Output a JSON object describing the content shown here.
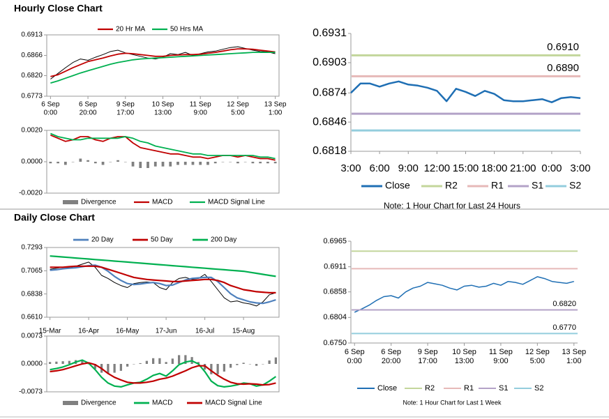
{
  "section_titles": [
    "Hourly Close Chart",
    "Daily Close Chart"
  ],
  "chart_data": [
    {
      "type": "line",
      "ylim": [
        0.6773,
        0.6913
      ],
      "yticks": [
        0.6773,
        {
          "value": 0.682,
          "label": "0.6820"
        },
        0.6866,
        0.6913
      ],
      "categories": [
        {
          "date": "6 Sep",
          "time": "0:00"
        },
        null,
        null,
        null,
        null,
        {
          "date": "6 Sep",
          "time": "20:00"
        },
        null,
        null,
        null,
        null,
        {
          "date": "9 Sep",
          "time": "17:00"
        },
        null,
        null,
        null,
        null,
        {
          "date": "10 Sep",
          "time": "13:00"
        },
        null,
        null,
        null,
        null,
        {
          "date": "11 Sep",
          "time": "9:00"
        },
        null,
        null,
        null,
        null,
        {
          "date": "12 Sep",
          "time": "5:00"
        },
        null,
        null,
        null,
        null,
        {
          "date": "13 Sep",
          "time": "1:00"
        }
      ],
      "series": [
        {
          "color": "#000000",
          "values": [
            0.6812,
            0.6825,
            0.6838,
            0.685,
            0.6858,
            0.6855,
            0.6862,
            0.6868,
            0.6875,
            0.6878,
            0.6872,
            0.6868,
            0.6864,
            0.686,
            0.6858,
            0.6862,
            0.687,
            0.6868,
            0.6873,
            0.6866,
            0.687,
            0.6874,
            0.6876,
            0.688,
            0.6884,
            0.6886,
            0.6882,
            0.6878,
            0.6875,
            0.6874,
            0.687
          ]
        },
        {
          "name": "20 Hr MA",
          "color": "#c00000",
          "values": [
            0.6818,
            0.6822,
            0.683,
            0.6838,
            0.6845,
            0.6852,
            0.6856,
            0.686,
            0.6865,
            0.6869,
            0.6871,
            0.687,
            0.6868,
            0.6866,
            0.6864,
            0.6864,
            0.6866,
            0.6867,
            0.6868,
            0.6868,
            0.6869,
            0.6871,
            0.6873,
            0.6876,
            0.6879,
            0.6881,
            0.6881,
            0.688,
            0.6878,
            0.6876,
            0.6874
          ]
        },
        {
          "name": "50 Hrs MA",
          "color": "#00b050",
          "values": [
            0.6803,
            0.6808,
            0.6814,
            0.682,
            0.6826,
            0.6831,
            0.6836,
            0.6841,
            0.6846,
            0.685,
            0.6853,
            0.6856,
            0.6858,
            0.6859,
            0.686,
            0.6861,
            0.6862,
            0.6863,
            0.6864,
            0.6865,
            0.6866,
            0.6867,
            0.6868,
            0.6869,
            0.687,
            0.6871,
            0.6872,
            0.6873,
            0.6873,
            0.6873,
            0.6873
          ]
        }
      ]
    },
    {
      "type": "line",
      "ylim": [
        -0.002,
        0.002
      ],
      "yticks": [
        {
          "value": -0.002,
          "label": "-0.0020"
        },
        {
          "value": 0,
          "label": "0.0000"
        },
        {
          "value": 0.002,
          "label": "0.0020"
        }
      ],
      "series": [
        {
          "name": "Divergence",
          "color": "#808080",
          "kind": "bar",
          "values": [
            -0.0001,
            -0.0001,
            -0.0002,
            0,
            0.0002,
            0.0001,
            -0.0001,
            -0.0002,
            0,
            0.0001,
            0,
            -0.0003,
            -0.0004,
            -0.0004,
            -0.0003,
            -0.0003,
            -0.0003,
            -0.0002,
            -0.0002,
            -0.0002,
            -0.0002,
            -0.0002,
            -0.0001,
            0,
            0,
            -0.0001,
            0,
            -0.0001,
            -0.0001,
            -0.0001,
            -0.0001
          ]
        },
        {
          "name": "MACD",
          "color": "#c00000",
          "values": [
            0.0017,
            0.0015,
            0.0013,
            0.0014,
            0.0016,
            0.0016,
            0.0014,
            0.0013,
            0.0015,
            0.0016,
            0.0016,
            0.0012,
            0.0009,
            0.0008,
            0.0007,
            0.0006,
            0.0005,
            0.0005,
            0.0004,
            0.0003,
            0.0003,
            0.0002,
            0.0003,
            0.0004,
            0.0004,
            0.0003,
            0.0004,
            0.0003,
            0.0002,
            0.0002,
            0.0001
          ]
        },
        {
          "name": "MACD Signal Line",
          "color": "#00b050",
          "values": [
            0.0018,
            0.0016,
            0.0015,
            0.0014,
            0.0014,
            0.0015,
            0.0015,
            0.0015,
            0.0015,
            0.0015,
            0.0016,
            0.0015,
            0.0013,
            0.0012,
            0.001,
            0.0009,
            0.0008,
            0.0007,
            0.0006,
            0.0005,
            0.0005,
            0.0004,
            0.0004,
            0.0004,
            0.0004,
            0.0004,
            0.0004,
            0.0004,
            0.0003,
            0.0003,
            0.0002
          ]
        }
      ]
    },
    {
      "type": "line",
      "ylim": [
        0.6818,
        0.6931
      ],
      "yticks": [
        0.6818,
        0.6846,
        0.6874,
        0.6903,
        0.6931
      ],
      "categories": [
        "3:00",
        null,
        null,
        "6:00",
        null,
        null,
        "9:00",
        null,
        null,
        "12:00",
        null,
        null,
        "15:00",
        null,
        null,
        "18:00",
        null,
        null,
        "21:00",
        null,
        null,
        "0:00",
        null,
        null,
        "3:00"
      ],
      "series": [
        {
          "name": "Close",
          "color": "#1f6fb4",
          "values": [
            0.6874,
            0.6883,
            0.6883,
            0.688,
            0.6883,
            0.6885,
            0.6882,
            0.6881,
            0.6879,
            0.6876,
            0.6866,
            0.6878,
            0.6875,
            0.6871,
            0.6876,
            0.6873,
            0.6867,
            0.6866,
            0.6866,
            0.6867,
            0.6868,
            0.6865,
            0.6869,
            0.687,
            0.6869
          ]
        },
        {
          "name": "R2",
          "color": "#c3d69b",
          "value": 0.691,
          "value_label": "0.6910"
        },
        {
          "name": "R1",
          "color": "#e6b9b8",
          "value": 0.689,
          "value_label": "0.6890"
        },
        {
          "name": "S1",
          "color": "#b3a2c7",
          "value": 0.6854
        },
        {
          "name": "S2",
          "color": "#93cddd",
          "value": 0.6838
        }
      ],
      "note": "Note: 1 Hour Chart for Last 24 Hours"
    },
    {
      "type": "line",
      "ylim": [
        0.661,
        0.7293
      ],
      "yticks": [
        {
          "value": 0.661,
          "label": "0.6610"
        },
        0.6838,
        0.7065,
        0.7293
      ],
      "categories": [
        "15-Mar",
        null,
        null,
        null,
        null,
        null,
        "16-Apr",
        null,
        null,
        null,
        null,
        null,
        "16-May",
        null,
        null,
        null,
        null,
        null,
        "17-Jun",
        null,
        null,
        null,
        null,
        null,
        "16-Jul",
        null,
        null,
        null,
        null,
        null,
        "15-Aug",
        null,
        null,
        null,
        null,
        null
      ],
      "series": [
        {
          "color": "#000000",
          "values": [
            0.708,
            0.709,
            0.71,
            0.7095,
            0.711,
            0.713,
            0.715,
            0.71,
            0.702,
            0.699,
            0.695,
            0.692,
            0.69,
            0.694,
            0.695,
            0.6955,
            0.695,
            0.69,
            0.688,
            0.695,
            0.699,
            0.7,
            0.698,
            0.699,
            0.703,
            0.696,
            0.688,
            0.68,
            0.676,
            0.677,
            0.675,
            0.674,
            0.672,
            0.676,
            0.683,
            0.685
          ]
        },
        {
          "name": "20 Day",
          "color": "#4f81bd",
          "values": [
            0.707,
            0.7075,
            0.7085,
            0.709,
            0.7095,
            0.7105,
            0.7115,
            0.712,
            0.71,
            0.706,
            0.701,
            0.697,
            0.694,
            0.693,
            0.6935,
            0.6945,
            0.695,
            0.694,
            0.692,
            0.6925,
            0.695,
            0.6975,
            0.699,
            0.6995,
            0.7,
            0.7,
            0.696,
            0.69,
            0.684,
            0.68,
            0.678,
            0.676,
            0.675,
            0.6745,
            0.676,
            0.678
          ]
        },
        {
          "name": "50 Day",
          "color": "#c00000",
          "values": [
            0.71,
            0.71,
            0.71,
            0.7105,
            0.711,
            0.711,
            0.711,
            0.711,
            0.71,
            0.708,
            0.706,
            0.704,
            0.702,
            0.7,
            0.699,
            0.698,
            0.6975,
            0.697,
            0.6965,
            0.696,
            0.696,
            0.6965,
            0.697,
            0.6975,
            0.698,
            0.698,
            0.697,
            0.695,
            0.692,
            0.69,
            0.688,
            0.687,
            0.686,
            0.6855,
            0.685,
            0.685
          ]
        },
        {
          "name": "200 Day",
          "color": "#00b050",
          "values": [
            0.721,
            0.7205,
            0.72,
            0.7195,
            0.719,
            0.7185,
            0.718,
            0.7175,
            0.717,
            0.7165,
            0.716,
            0.7155,
            0.715,
            0.7145,
            0.714,
            0.7135,
            0.713,
            0.7125,
            0.712,
            0.7115,
            0.711,
            0.7105,
            0.71,
            0.7095,
            0.709,
            0.7085,
            0.708,
            0.7075,
            0.707,
            0.7065,
            0.706,
            0.705,
            0.704,
            0.703,
            0.702,
            0.701
          ]
        }
      ]
    },
    {
      "type": "line",
      "ylim": [
        -0.0073,
        0.0073
      ],
      "yticks": [
        {
          "value": -0.0073,
          "label": "-0.0073"
        },
        {
          "value": 0,
          "label": "0.0000"
        },
        0.0073
      ],
      "series": [
        {
          "name": "Divergence",
          "color": "#808080",
          "kind": "bar",
          "values": [
            0.0005,
            0.0006,
            0.0007,
            0.0008,
            0.001,
            0.001,
            -0.0001,
            -0.0013,
            -0.0023,
            -0.0025,
            -0.0023,
            -0.0018,
            -0.0007,
            0,
            0.0002,
            0.0008,
            0.0015,
            0.0015,
            0.0005,
            0.0014,
            0.0023,
            0.0023,
            0.0018,
            0.0005,
            -0.0015,
            -0.0027,
            -0.0027,
            -0.002,
            -0.001,
            -0.0003,
            0.0003,
            0,
            -0.0005,
            0,
            0.0009,
            0.0017
          ]
        },
        {
          "name": "MACD",
          "color": "#00b050",
          "values": [
            -0.0015,
            -0.0012,
            -0.0008,
            -0.0002,
            0.0005,
            0.001,
            0.0002,
            -0.0015,
            -0.0035,
            -0.005,
            -0.0058,
            -0.006,
            -0.0055,
            -0.005,
            -0.0048,
            -0.004,
            -0.003,
            -0.0025,
            -0.0032,
            -0.0018,
            -0.0002,
            0.0005,
            0.0008,
            0,
            -0.002,
            -0.0045,
            -0.0057,
            -0.006,
            -0.0058,
            -0.0055,
            -0.005,
            -0.0052,
            -0.0058,
            -0.0055,
            -0.0045,
            -0.0033
          ]
        },
        {
          "name": "MACD Signal Line",
          "color": "#c00000",
          "values": [
            -0.002,
            -0.0018,
            -0.0015,
            -0.001,
            -0.0005,
            0,
            0.0003,
            -0.0002,
            -0.0012,
            -0.0025,
            -0.0035,
            -0.0042,
            -0.0048,
            -0.005,
            -0.005,
            -0.0048,
            -0.0045,
            -0.004,
            -0.0037,
            -0.0032,
            -0.0025,
            -0.0018,
            -0.001,
            -0.0005,
            -0.0005,
            -0.0018,
            -0.003,
            -0.004,
            -0.0048,
            -0.0052,
            -0.0053,
            -0.0052,
            -0.0053,
            -0.0055,
            -0.0054,
            -0.005
          ]
        }
      ]
    },
    {
      "type": "line",
      "ylim": [
        0.675,
        0.6965
      ],
      "yticks": [
        {
          "value": 0.675,
          "label": "0.6750"
        },
        0.6804,
        0.6858,
        0.6911,
        0.6965
      ],
      "categories": [
        {
          "date": "6 Sep",
          "time": "0:00"
        },
        null,
        null,
        null,
        null,
        {
          "date": "6 Sep",
          "time": "20:00"
        },
        null,
        null,
        null,
        null,
        {
          "date": "9 Sep",
          "time": "17:00"
        },
        null,
        null,
        null,
        null,
        {
          "date": "10 Sep",
          "time": "13:00"
        },
        null,
        null,
        null,
        null,
        {
          "date": "11 Sep",
          "time": "9:00"
        },
        null,
        null,
        null,
        null,
        {
          "date": "12 Sep",
          "time": "5:00"
        },
        null,
        null,
        null,
        null,
        {
          "date": "13 Sep",
          "time": "1:00"
        }
      ],
      "series": [
        {
          "name": "Close",
          "color": "#1f6fb4",
          "values": [
            0.6815,
            0.6822,
            0.683,
            0.684,
            0.6848,
            0.685,
            0.6845,
            0.6858,
            0.6866,
            0.687,
            0.6878,
            0.6875,
            0.6872,
            0.6866,
            0.6862,
            0.687,
            0.6872,
            0.6868,
            0.687,
            0.6876,
            0.6872,
            0.688,
            0.6878,
            0.6874,
            0.6882,
            0.689,
            0.6886,
            0.688,
            0.6878,
            0.6876,
            0.688
          ]
        },
        {
          "name": "R2",
          "color": "#c3d69b",
          "value": 0.6944
        },
        {
          "name": "R1",
          "color": "#e6b9b8",
          "value": 0.6907
        },
        {
          "name": "S1",
          "color": "#b3a2c7",
          "value": 0.682,
          "value_label": "0.6820"
        },
        {
          "name": "S2",
          "color": "#93cddd",
          "value": 0.677,
          "value_label": "0.6770"
        }
      ],
      "note": "Note: 1 Hour Chart for Last 1 Week"
    }
  ]
}
